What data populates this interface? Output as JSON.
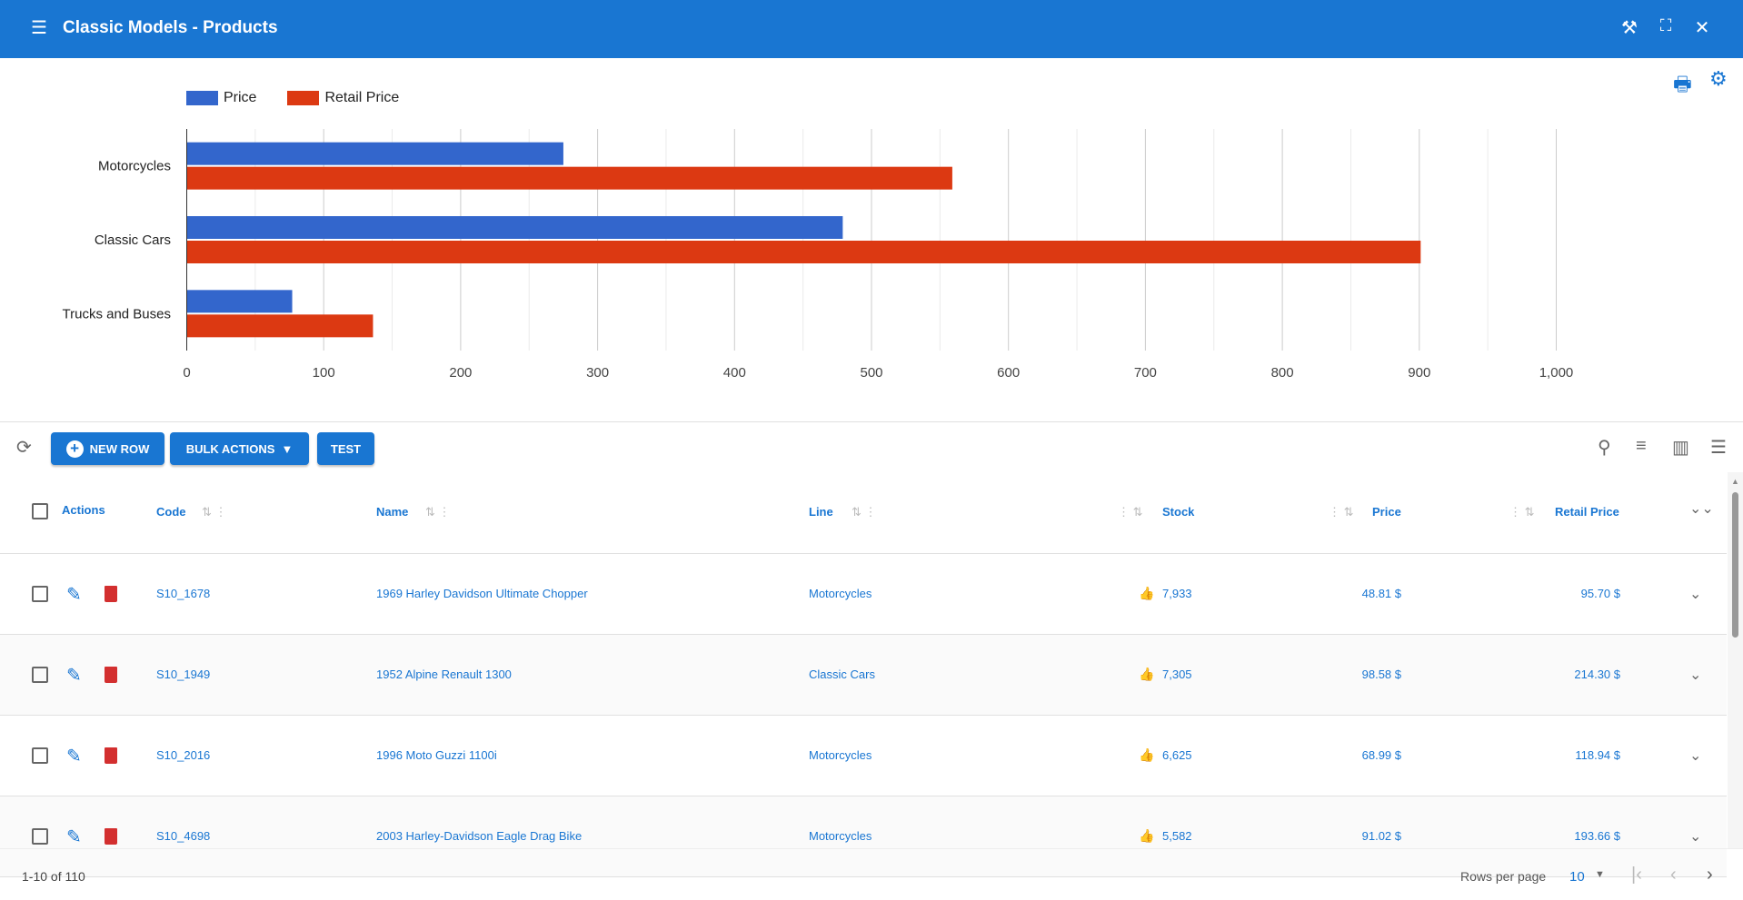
{
  "header": {
    "title": "Classic Models - Products",
    "icons": [
      "menu-icon",
      "tools-icon",
      "fullscreen-icon",
      "close-icon"
    ]
  },
  "chart_tools": [
    "print-icon",
    "settings-icon"
  ],
  "chart_data": {
    "type": "bar",
    "orientation": "horizontal",
    "categories": [
      "Motorcycles",
      "Classic Cars",
      "Trucks and Buses"
    ],
    "series": [
      {
        "name": "Price",
        "color": "#3366cc",
        "values": [
          275,
          479,
          77
        ]
      },
      {
        "name": "Retail Price",
        "color": "#dc3912",
        "values": [
          559,
          901,
          136
        ]
      }
    ],
    "xlim": [
      0,
      1000
    ],
    "ticks": [
      "0",
      "100",
      "200",
      "300",
      "400",
      "500",
      "600",
      "700",
      "800",
      "900",
      "1,000"
    ],
    "grid": true,
    "legend": "top-left"
  },
  "toolbar": {
    "new_row": "NEW ROW",
    "bulk_actions": "BULK ACTIONS",
    "test": "TEST"
  },
  "table": {
    "columns": {
      "actions": "Actions",
      "code": "Code",
      "name": "Name",
      "line": "Line",
      "stock": "Stock",
      "price": "Price",
      "retail": "Retail Price"
    },
    "rows": [
      {
        "code": "S10_1678",
        "name": "1969 Harley Davidson Ultimate Chopper",
        "line": "Motorcycles",
        "stock": "7,933",
        "price": "48.81 $",
        "retail": "95.70 $"
      },
      {
        "code": "S10_1949",
        "name": "1952 Alpine Renault 1300",
        "line": "Classic Cars",
        "stock": "7,305",
        "price": "98.58 $",
        "retail": "214.30 $"
      },
      {
        "code": "S10_2016",
        "name": "1996 Moto Guzzi 1100i",
        "line": "Motorcycles",
        "stock": "6,625",
        "price": "68.99 $",
        "retail": "118.94 $"
      },
      {
        "code": "S10_4698",
        "name": "2003 Harley-Davidson Eagle Drag Bike",
        "line": "Motorcycles",
        "stock": "5,582",
        "price": "91.02 $",
        "retail": "193.66 $"
      }
    ]
  },
  "footer": {
    "range": "1-10 of 110",
    "rows_per_page_label": "Rows per page",
    "rows_per_page": "10"
  }
}
